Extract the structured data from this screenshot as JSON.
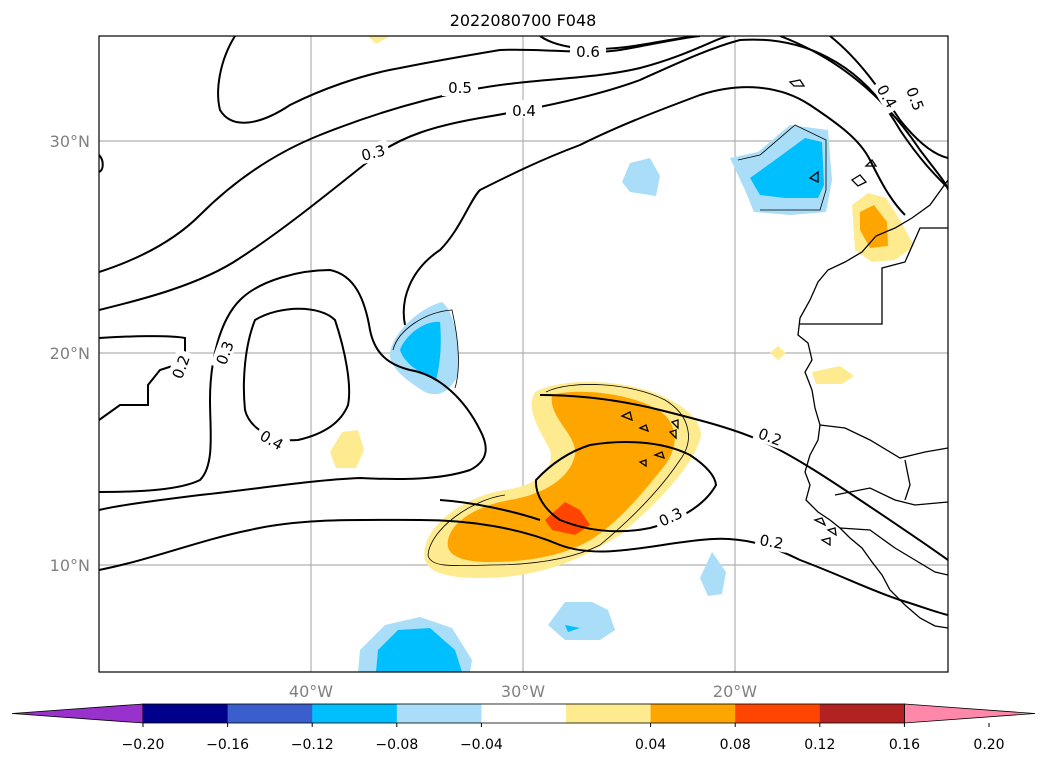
{
  "title": "2022080700 F048",
  "map": {
    "lon_labels": [
      "40°W",
      "30°W",
      "20°W"
    ],
    "lat_labels": [
      "30°N",
      "20°N",
      "10°N"
    ],
    "contour_labels": [
      "0.6",
      "0.5",
      "0.4",
      "0.4",
      "0.5",
      "0.3",
      "0.3",
      "0.2",
      "0.4",
      "0.2",
      "0.3",
      "0.2"
    ],
    "colors": {
      "pos_light": "#ffeb8f",
      "pos_mid": "#ffa500",
      "pos_strong": "#ff4500",
      "neg_light": "#aaddf8",
      "neg_mid": "#00bfff"
    }
  },
  "colorbar": {
    "tick_labels": [
      "−0.20",
      "−0.16",
      "−0.12",
      "−0.08",
      "−0.04",
      "0.04",
      "0.08",
      "0.12",
      "0.16",
      "0.20"
    ],
    "colors": [
      "#9932cc",
      "#00008b",
      "#3a5fcd",
      "#00bfff",
      "#aaddf8",
      "#ffffff",
      "#ffeb8f",
      "#ffa500",
      "#ff4500",
      "#b22222",
      "#ff88aa"
    ]
  }
}
